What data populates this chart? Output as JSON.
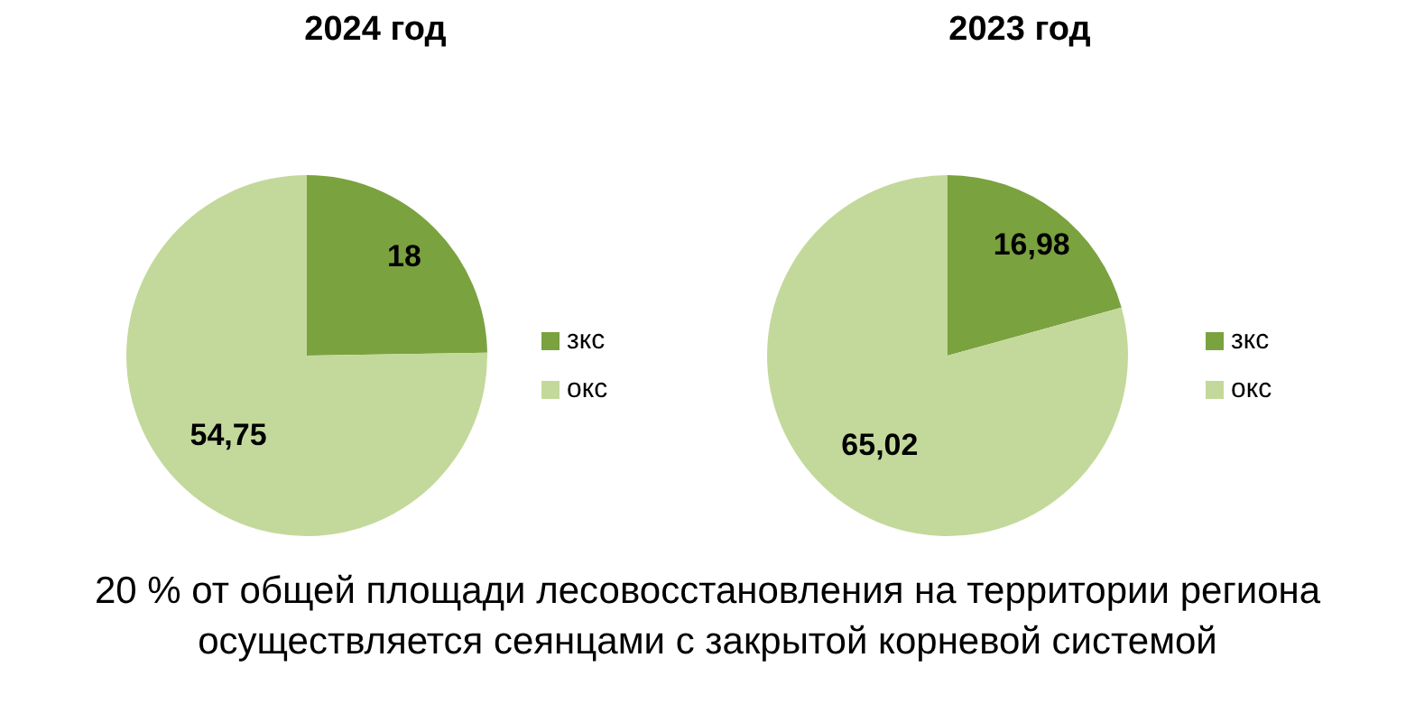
{
  "chart_data": [
    {
      "type": "pie",
      "title": "2024 год",
      "categories": [
        "зкс",
        "окс"
      ],
      "values": [
        18,
        54.75
      ],
      "value_labels": [
        "18",
        "54,75"
      ],
      "colors": [
        "#7aa23f",
        "#c3d99b"
      ],
      "legend": "right",
      "annotations": [
        "20 % от общей площади лесовосстановления на территории региона осуществляется сеянцами с закрытой корневой системой"
      ]
    },
    {
      "type": "pie",
      "title": "2023 год",
      "categories": [
        "зкс",
        "окс"
      ],
      "values": [
        16.98,
        65.02
      ],
      "value_labels": [
        "16,98",
        "65,02"
      ],
      "colors": [
        "#7aa23f",
        "#c3d99b"
      ],
      "legend": "right"
    }
  ]
}
